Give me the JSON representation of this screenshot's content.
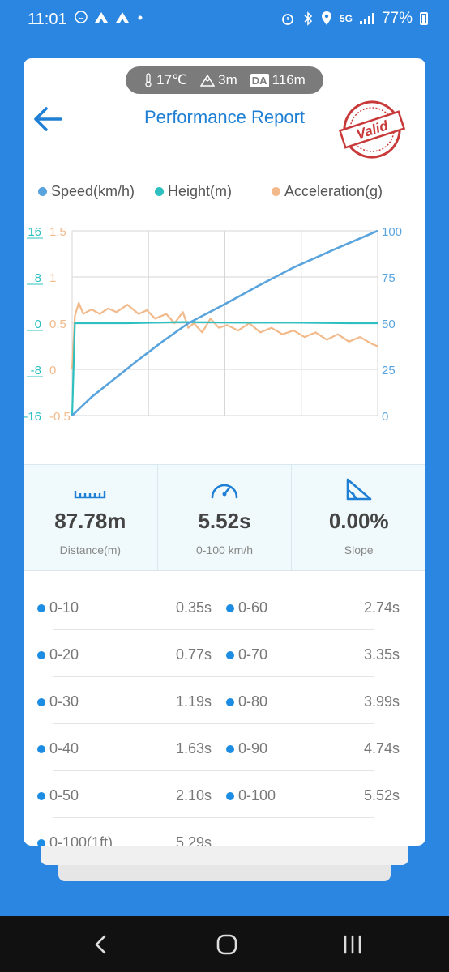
{
  "status_bar": {
    "time": "11:01",
    "network": "5G",
    "battery": "77%"
  },
  "environment": {
    "temperature": "17℃",
    "altitude": "3m",
    "da_label": "DA",
    "density_altitude": "116m"
  },
  "header": {
    "title": "Performance Report",
    "stamp_text": "Valid"
  },
  "chart_data": {
    "type": "line",
    "legend": [
      "Speed(km/h)",
      "Height(m)",
      "Acceleration(g)"
    ],
    "colors": {
      "speed": "#5aa4de",
      "height": "#2ec0c0",
      "acceleration": "#f2b98a"
    },
    "left_axis_height": {
      "ticks": [
        "16",
        "8",
        "0",
        "-8",
        "-16"
      ],
      "range": [
        -16,
        16
      ]
    },
    "left_axis_acceleration": {
      "ticks": [
        "1.5",
        "1",
        "0.5",
        "0",
        "-0.5"
      ],
      "range": [
        -0.5,
        1.5
      ]
    },
    "right_axis_speed": {
      "ticks": [
        "100",
        "75",
        "50",
        "25",
        "0"
      ],
      "range": [
        0,
        100
      ]
    },
    "x_range": [
      0,
      5.52
    ],
    "grid": true,
    "series": [
      {
        "name": "Speed(km/h)",
        "x": [
          0,
          0.35,
          0.77,
          1.19,
          1.63,
          2.1,
          2.74,
          3.35,
          3.99,
          4.74,
          5.52
        ],
        "y": [
          0,
          10,
          20,
          30,
          40,
          50,
          60,
          70,
          80,
          90,
          100
        ]
      },
      {
        "name": "Height(m)",
        "x": [
          0,
          0.05,
          1.0,
          2.0,
          3.0,
          4.0,
          5.0,
          5.52
        ],
        "y": [
          -16,
          0,
          0,
          0.2,
          0.1,
          0.1,
          0,
          0
        ]
      },
      {
        "name": "Acceleration(g)",
        "x": [
          0,
          0.05,
          0.12,
          0.2,
          0.35,
          0.5,
          0.65,
          0.8,
          1.0,
          1.2,
          1.35,
          1.5,
          1.7,
          1.85,
          2.0,
          2.1,
          2.2,
          2.35,
          2.5,
          2.65,
          2.8,
          3.0,
          3.2,
          3.4,
          3.6,
          3.8,
          4.0,
          4.2,
          4.4,
          4.6,
          4.8,
          5.0,
          5.2,
          5.4,
          5.52
        ],
        "y": [
          0,
          0.58,
          0.72,
          0.6,
          0.65,
          0.6,
          0.66,
          0.62,
          0.7,
          0.6,
          0.64,
          0.55,
          0.6,
          0.5,
          0.62,
          0.45,
          0.5,
          0.4,
          0.55,
          0.45,
          0.48,
          0.42,
          0.5,
          0.4,
          0.45,
          0.38,
          0.42,
          0.35,
          0.4,
          0.32,
          0.38,
          0.3,
          0.35,
          0.28,
          0.25
        ]
      }
    ]
  },
  "stats": [
    {
      "icon": "ruler-icon",
      "value": "87.78m",
      "label": "Distance(m)"
    },
    {
      "icon": "speedometer-icon",
      "value": "5.52s",
      "label": "0-100 km/h"
    },
    {
      "icon": "slope-icon",
      "value": "0.00%",
      "label": "Slope"
    }
  ],
  "times": [
    {
      "left_label": "0-10",
      "left_value": "0.35s",
      "right_label": "0-60",
      "right_value": "2.74s"
    },
    {
      "left_label": "0-20",
      "left_value": "0.77s",
      "right_label": "0-70",
      "right_value": "3.35s"
    },
    {
      "left_label": "0-30",
      "left_value": "1.19s",
      "right_label": "0-80",
      "right_value": "3.99s"
    },
    {
      "left_label": "0-40",
      "left_value": "1.63s",
      "right_label": "0-90",
      "right_value": "4.74s"
    },
    {
      "left_label": "0-50",
      "left_value": "2.10s",
      "right_label": "0-100",
      "right_value": "5.52s"
    },
    {
      "left_label": "0-100(1ft)",
      "left_value": "5.29s",
      "right_label": "",
      "right_value": ""
    }
  ]
}
